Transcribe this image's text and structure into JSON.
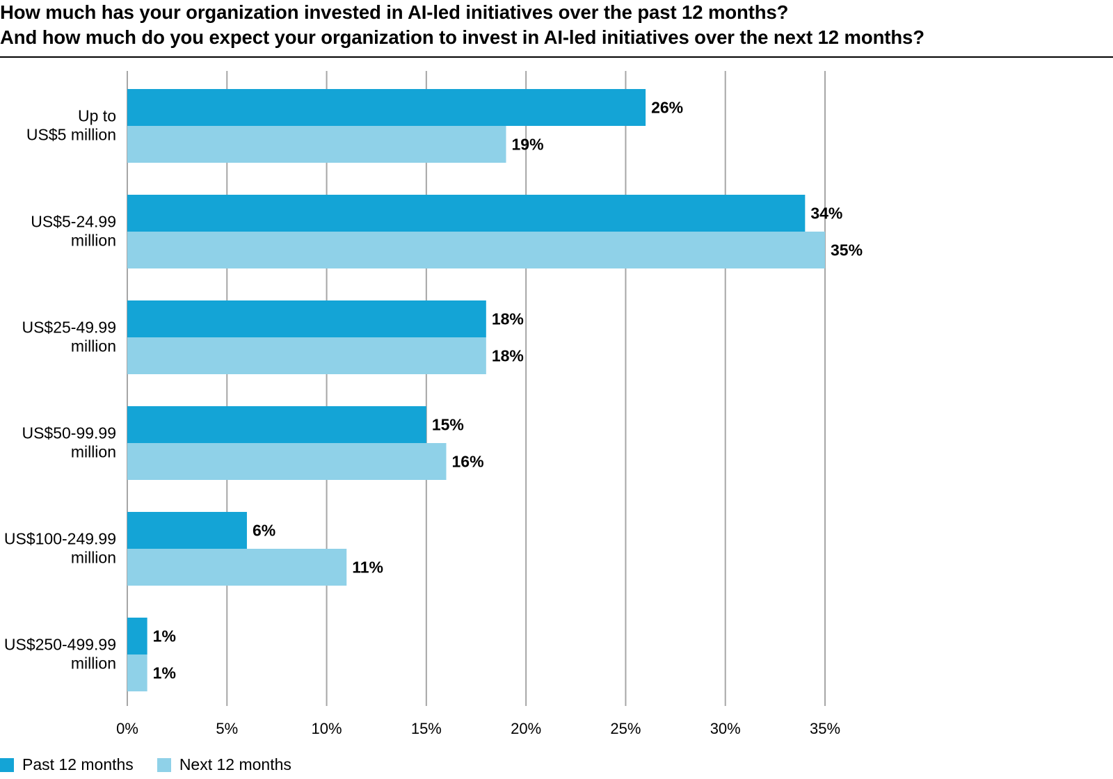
{
  "chart_data": {
    "type": "bar",
    "orientation": "horizontal",
    "title_lines": [
      "How much has your organization invested in AI-led initiatives over the past 12 months?",
      "And how much do you expect your organization to invest in AI-led initiatives over the next 12 months?"
    ],
    "categories": [
      [
        "Up to",
        "US$5 million"
      ],
      [
        "US$5-24.99",
        "million"
      ],
      [
        "US$25-49.99",
        "million"
      ],
      [
        "US$50-99.99",
        "million"
      ],
      [
        "US$100-249.99",
        "million"
      ],
      [
        "US$250-499.99",
        "million"
      ]
    ],
    "series": [
      {
        "name": "Past 12 months",
        "color": "#14a4d6",
        "values": [
          26,
          34,
          18,
          15,
          6,
          1
        ]
      },
      {
        "name": "Next 12 months",
        "color": "#8fd1e8",
        "values": [
          19,
          35,
          18,
          16,
          11,
          1
        ]
      }
    ],
    "xlim": [
      0,
      35
    ],
    "xticks": [
      0,
      5,
      10,
      15,
      20,
      25,
      30,
      35
    ],
    "tick_suffix": "%",
    "grid": true,
    "legend_position": "bottom-left"
  }
}
